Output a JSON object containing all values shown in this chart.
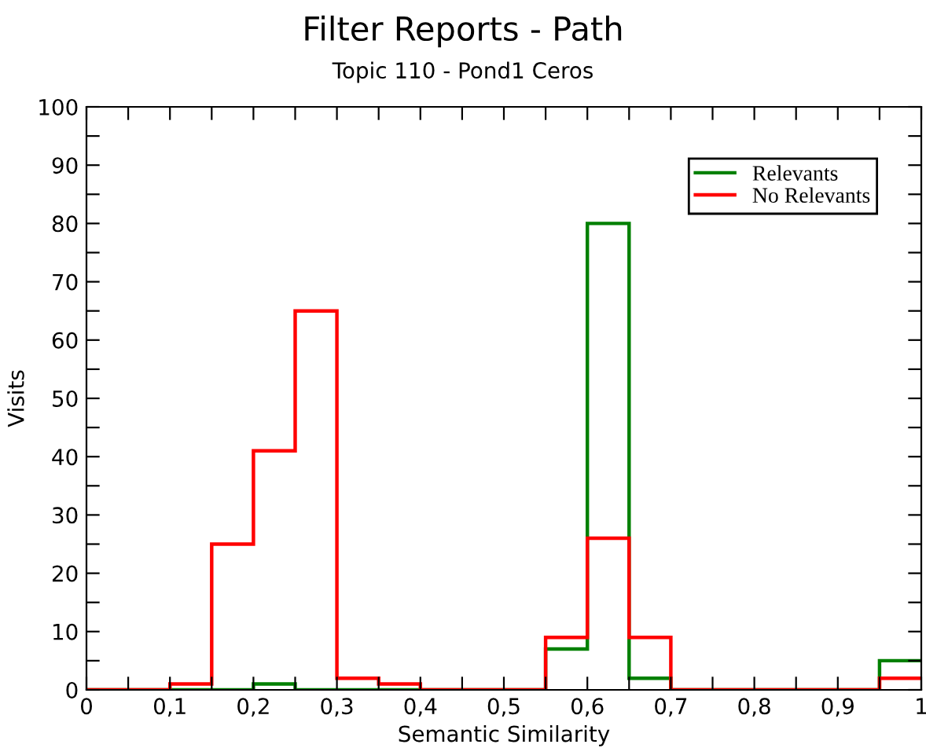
{
  "chart_data": {
    "type": "histogram",
    "title": "Filter Reports - Path",
    "subtitle": "Topic 110 - Pond1 Ceros",
    "xlabel": "Semantic Similarity",
    "ylabel": "Visits",
    "bins": [
      0,
      0.05,
      0.1,
      0.15,
      0.2,
      0.25,
      0.3,
      0.35,
      0.4,
      0.45,
      0.5,
      0.55,
      0.6,
      0.65,
      0.7,
      0.75,
      0.8,
      0.85,
      0.9,
      0.95,
      1
    ],
    "series": [
      {
        "name": "Relevants",
        "color": "#008000",
        "values": [
          0,
          0,
          0,
          0,
          1,
          0,
          0,
          0,
          0,
          0,
          0,
          7,
          80,
          2,
          0,
          0,
          0,
          0,
          0,
          5
        ]
      },
      {
        "name": "No Relevants",
        "color": "#ff0000",
        "values": [
          0,
          0,
          1,
          25,
          41,
          65,
          2,
          1,
          0,
          0,
          0,
          9,
          26,
          9,
          0,
          0,
          0,
          0,
          0,
          2
        ]
      }
    ],
    "xlim": [
      0,
      1
    ],
    "ylim": [
      0,
      100
    ],
    "xticks": [
      0,
      {
        "value": 0.05,
        "label": null
      },
      {
        "value": 0.1,
        "label": "0,1"
      },
      {
        "value": 0.15,
        "label": null
      },
      {
        "value": 0.2,
        "label": "0,2"
      },
      {
        "value": 0.25,
        "label": null
      },
      {
        "value": 0.3,
        "label": "0,3"
      },
      {
        "value": 0.35,
        "label": null
      },
      {
        "value": 0.4,
        "label": "0,4"
      },
      {
        "value": 0.45,
        "label": null
      },
      {
        "value": 0.5,
        "label": "0,5"
      },
      {
        "value": 0.55,
        "label": null
      },
      {
        "value": 0.6,
        "label": "0,6"
      },
      {
        "value": 0.65,
        "label": null
      },
      {
        "value": 0.7,
        "label": "0,7"
      },
      {
        "value": 0.75,
        "label": null
      },
      {
        "value": 0.8,
        "label": "0,8"
      },
      {
        "value": 0.85,
        "label": null
      },
      {
        "value": 0.9,
        "label": "0,9"
      },
      {
        "value": 0.95,
        "label": null
      },
      1
    ],
    "yticks": [
      0,
      {
        "value": 5,
        "label": null
      },
      10,
      {
        "value": 15,
        "label": null
      },
      20,
      {
        "value": 25,
        "label": null
      },
      30,
      {
        "value": 35,
        "label": null
      },
      40,
      {
        "value": 45,
        "label": null
      },
      50,
      {
        "value": 55,
        "label": null
      },
      60,
      {
        "value": 65,
        "label": null
      },
      70,
      {
        "value": 75,
        "label": null
      },
      80,
      {
        "value": 85,
        "label": null
      },
      90,
      {
        "value": 95,
        "label": null
      },
      100
    ],
    "grid": false,
    "legend": "top right"
  }
}
